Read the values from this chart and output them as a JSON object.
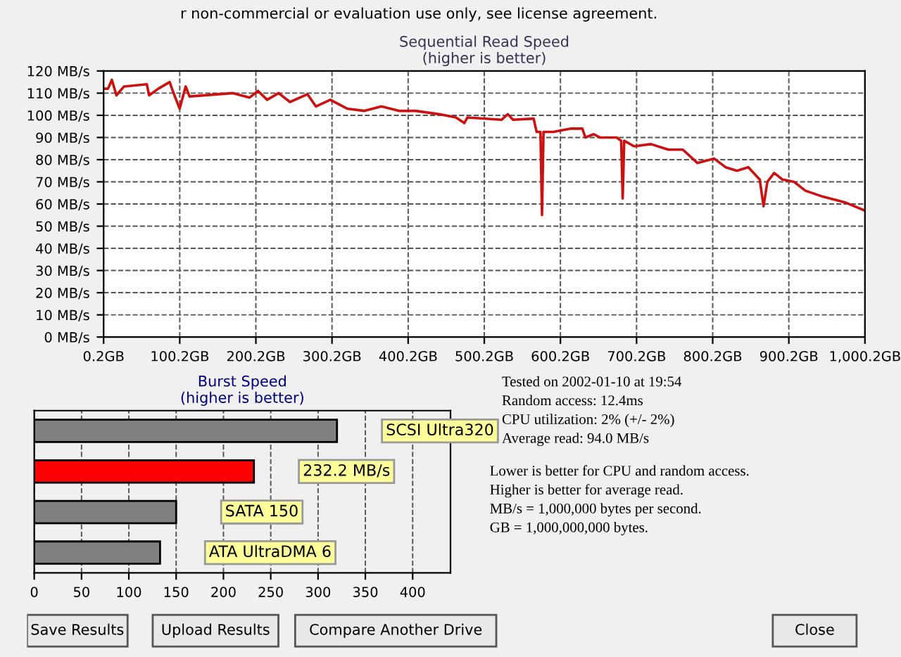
{
  "chart_data": [
    {
      "type": "line",
      "title": "Sequential Read Speed",
      "subtitle": "(higher is better)",
      "annotations": [
        "r non-commercial or evaluation use only, see license agreement."
      ],
      "x": [
        0.2,
        6,
        11,
        17,
        27,
        57,
        60,
        72,
        87,
        91,
        100,
        108,
        113,
        170,
        192,
        203,
        215,
        230,
        245,
        268,
        279,
        298,
        320,
        343,
        365,
        388,
        410,
        441,
        463,
        474,
        478,
        523,
        531,
        538,
        565,
        569,
        574,
        576,
        578,
        591,
        614,
        629,
        633,
        644,
        652,
        674,
        680,
        682,
        684,
        697,
        719,
        742,
        761,
        780,
        802,
        817,
        832,
        847,
        862,
        867,
        872,
        881,
        892,
        907,
        922,
        945,
        975,
        1000.2
      ],
      "series": [
        {
          "color": "#cc1111",
          "values": [
            112,
            112,
            116,
            109,
            113,
            114,
            109,
            112,
            115,
            111,
            103,
            113,
            108.5,
            110,
            108,
            111,
            107,
            110,
            106,
            109.5,
            104,
            107,
            103,
            102,
            104,
            102,
            102,
            100.5,
            99,
            96.5,
            99,
            98,
            100.5,
            98,
            98.5,
            92.5,
            92.5,
            55,
            92.5,
            92.5,
            94,
            94,
            90,
            91.5,
            90,
            90,
            88.5,
            62.5,
            88.5,
            86,
            87,
            84.5,
            84.5,
            78.5,
            80.5,
            76.6,
            75,
            76.6,
            71,
            59,
            70,
            74,
            71,
            70,
            66,
            63.3,
            60.6,
            57
          ]
        }
      ],
      "xlim": [
        0.2,
        1000.2
      ],
      "xticks": [
        {
          "value": 0.2,
          "label": "0.2GB"
        },
        {
          "value": 100.2,
          "label": "100.2GB"
        },
        {
          "value": 200.2,
          "label": "200.2GB"
        },
        {
          "value": 300.2,
          "label": "300.2GB"
        },
        {
          "value": 400.2,
          "label": "400.2GB"
        },
        {
          "value": 500.2,
          "label": "500.2GB"
        },
        {
          "value": 600.2,
          "label": "600.2GB"
        },
        {
          "value": 700.2,
          "label": "700.2GB"
        },
        {
          "value": 800.2,
          "label": "800.2GB"
        },
        {
          "value": 900.2,
          "label": "900.2GB"
        },
        {
          "value": 1000.2,
          "label": "1,000.2GB"
        }
      ],
      "ylim": [
        0,
        120
      ],
      "yticks": [
        {
          "value": 0,
          "label": "0 MB/s"
        },
        {
          "value": 10,
          "label": "10 MB/s"
        },
        {
          "value": 20,
          "label": "20 MB/s"
        },
        {
          "value": 30,
          "label": "30 MB/s"
        },
        {
          "value": 40,
          "label": "40 MB/s"
        },
        {
          "value": 50,
          "label": "50 MB/s"
        },
        {
          "value": 60,
          "label": "60 MB/s"
        },
        {
          "value": 70,
          "label": "70 MB/s"
        },
        {
          "value": 80,
          "label": "80 MB/s"
        },
        {
          "value": 90,
          "label": "90 MB/s"
        },
        {
          "value": 100,
          "label": "100 MB/s"
        },
        {
          "value": 110,
          "label": "110 MB/s"
        },
        {
          "value": 120,
          "label": "120 MB/s"
        }
      ],
      "grid": true,
      "line_style": "solid",
      "marker": "none"
    },
    {
      "type": "bar",
      "orientation": "horizontal",
      "title": "Burst Speed",
      "subtitle": "(higher is better)",
      "categories": [
        "SCSI Ultra320",
        null,
        "SATA 150",
        "ATA UltraDMA 6"
      ],
      "values": [
        320,
        232.2,
        150,
        133
      ],
      "colors": [
        "#808080",
        "#ff0000",
        "#808080",
        "#808080"
      ],
      "value_labels": [
        null,
        "232.2 MB/s",
        null,
        null
      ],
      "xlim": [
        0,
        440
      ],
      "xticks": [
        0,
        50,
        100,
        150,
        200,
        250,
        300,
        350,
        400
      ],
      "grid": "x",
      "tick_labels": "x"
    },
    {
      "type": "other",
      "annotations": [
        "Tested on 2002-01-10 at 19:54",
        "Random access: 12.4ms",
        "CPU utilization: 2% (+/- 2%)",
        "Average read: 94.0 MB/s",
        "Lower is better for CPU and random access.",
        "Higher is better for average read.",
        "MB/s = 1,000,000 bytes per second.",
        "GB = 1,000,000,000 bytes."
      ]
    },
    {
      "type": "other",
      "annotations": [
        "Save Results",
        "Upload Results",
        "Compare Another Drive",
        "Close"
      ]
    }
  ]
}
